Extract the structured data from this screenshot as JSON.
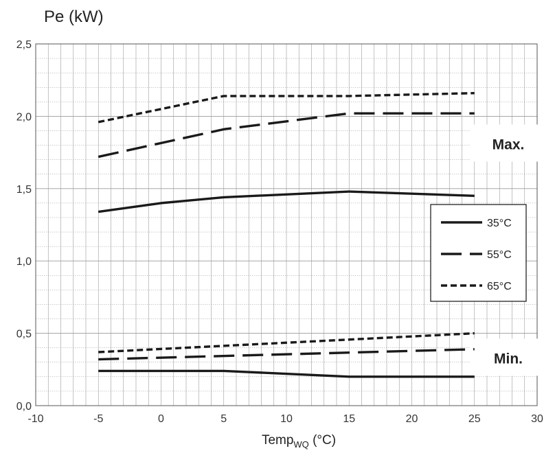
{
  "chart_data": {
    "type": "line",
    "ylabel": "Pe (kW)",
    "xlabel_main": "Temp",
    "xlabel_sub": "WQ",
    "xlabel_unit": " (°C)",
    "xlim": [
      -10,
      30
    ],
    "ylim": [
      0,
      2.5
    ],
    "xticks": [
      "-10",
      "-5",
      "0",
      "5",
      "10",
      "15",
      "20",
      "25",
      "30"
    ],
    "yticks": [
      "0,0",
      "0,5",
      "1,0",
      "1,5",
      "2,0",
      "2,5"
    ],
    "grid": true,
    "legend_position": "right",
    "legend": [
      {
        "label": "35°C",
        "style": "solid"
      },
      {
        "label": "55°C",
        "style": "long-dash"
      },
      {
        "label": "65°C",
        "style": "short-dash"
      }
    ],
    "annotations": [
      {
        "text": "Max.",
        "x": 27.7,
        "y": 1.81
      },
      {
        "text": "Min.",
        "x": 27.7,
        "y": 0.33
      }
    ],
    "series": [
      {
        "name": "35°C",
        "group": "Max.",
        "style": "solid",
        "x": [
          -5,
          0,
          5,
          15,
          25
        ],
        "values": [
          1.34,
          1.4,
          1.44,
          1.48,
          1.45
        ]
      },
      {
        "name": "55°C",
        "group": "Max.",
        "style": "long-dash",
        "x": [
          -5,
          5,
          15,
          25
        ],
        "values": [
          1.72,
          1.91,
          2.02,
          2.02
        ]
      },
      {
        "name": "65°C",
        "group": "Max.",
        "style": "short-dash",
        "x": [
          -5,
          5,
          15,
          25
        ],
        "values": [
          1.96,
          2.14,
          2.14,
          2.16
        ]
      },
      {
        "name": "35°C",
        "group": "Min.",
        "style": "solid",
        "x": [
          -5,
          5,
          15,
          25
        ],
        "values": [
          0.24,
          0.24,
          0.2,
          0.2
        ]
      },
      {
        "name": "55°C",
        "group": "Min.",
        "style": "long-dash",
        "x": [
          -5,
          25
        ],
        "values": [
          0.32,
          0.39
        ]
      },
      {
        "name": "65°C",
        "group": "Min.",
        "style": "short-dash",
        "x": [
          -5,
          25
        ],
        "values": [
          0.37,
          0.5
        ]
      }
    ],
    "colors": {
      "line": "#1a1a1a",
      "grid": "#9a9a9a",
      "axis": "#555555"
    }
  }
}
